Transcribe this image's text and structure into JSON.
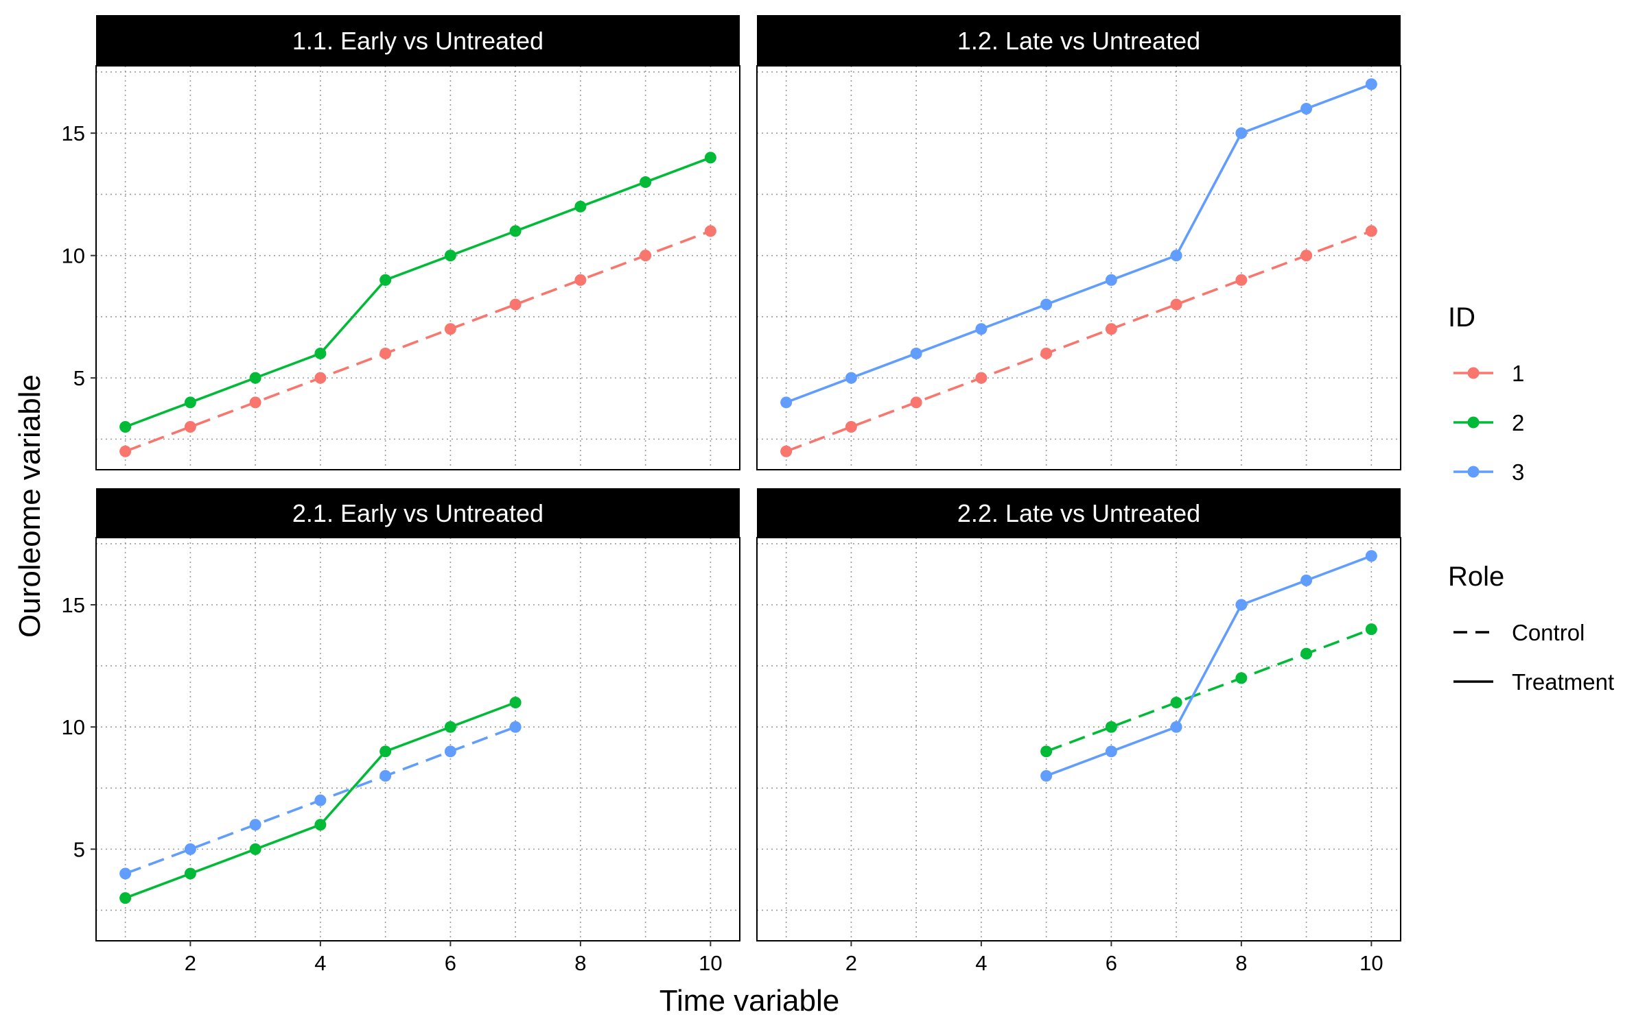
{
  "chart_data": {
    "type": "line",
    "xlabel": "Time variable",
    "ylabel": "Ouroleome variable",
    "xlim": [
      0.55,
      10.45
    ],
    "ylim": [
      1.25,
      17.75
    ],
    "x_ticks": [
      2,
      4,
      6,
      8,
      10
    ],
    "y_ticks": [
      5,
      10,
      15
    ],
    "grid": true,
    "grid_style": "dotted",
    "legend_placement": "right",
    "id_legend": {
      "title": "ID",
      "entries": [
        {
          "label": "1",
          "color": "#F8766D"
        },
        {
          "label": "2",
          "color": "#00BA38"
        },
        {
          "label": "3",
          "color": "#619CFF"
        }
      ]
    },
    "role_legend": {
      "title": "Role",
      "entries": [
        {
          "label": "Control",
          "linetype": "dashed"
        },
        {
          "label": "Treatment",
          "linetype": "solid"
        }
      ]
    },
    "panels": [
      {
        "strip": "1.1. Early vs Untreated",
        "series": [
          {
            "id": "1",
            "role": "Control",
            "color": "#F8766D",
            "x": [
              1,
              2,
              3,
              4,
              5,
              6,
              7,
              8,
              9,
              10
            ],
            "y": [
              2,
              3,
              4,
              5,
              6,
              7,
              8,
              9,
              10,
              11
            ]
          },
          {
            "id": "2",
            "role": "Treatment",
            "color": "#00BA38",
            "x": [
              1,
              2,
              3,
              4,
              5,
              6,
              7,
              8,
              9,
              10
            ],
            "y": [
              3,
              4,
              5,
              6,
              9,
              10,
              11,
              12,
              13,
              14
            ]
          }
        ]
      },
      {
        "strip": "1.2. Late vs Untreated",
        "series": [
          {
            "id": "1",
            "role": "Control",
            "color": "#F8766D",
            "x": [
              1,
              2,
              3,
              4,
              5,
              6,
              7,
              8,
              9,
              10
            ],
            "y": [
              2,
              3,
              4,
              5,
              6,
              7,
              8,
              9,
              10,
              11
            ]
          },
          {
            "id": "3",
            "role": "Treatment",
            "color": "#619CFF",
            "x": [
              1,
              2,
              3,
              4,
              5,
              6,
              7,
              8,
              9,
              10
            ],
            "y": [
              4,
              5,
              6,
              7,
              8,
              9,
              10,
              15,
              16,
              17
            ]
          }
        ]
      },
      {
        "strip": "2.1. Early vs Untreated",
        "series": [
          {
            "id": "3",
            "role": "Control",
            "color": "#619CFF",
            "x": [
              1,
              2,
              3,
              4,
              5,
              6,
              7
            ],
            "y": [
              4,
              5,
              6,
              7,
              8,
              9,
              10
            ]
          },
          {
            "id": "2",
            "role": "Treatment",
            "color": "#00BA38",
            "x": [
              1,
              2,
              3,
              4,
              5,
              6,
              7
            ],
            "y": [
              3,
              4,
              5,
              6,
              9,
              10,
              11
            ]
          }
        ]
      },
      {
        "strip": "2.2. Late vs Untreated",
        "series": [
          {
            "id": "2",
            "role": "Control",
            "color": "#00BA38",
            "x": [
              5,
              6,
              7,
              8,
              9,
              10
            ],
            "y": [
              9,
              10,
              11,
              12,
              13,
              14
            ]
          },
          {
            "id": "3",
            "role": "Treatment",
            "color": "#619CFF",
            "x": [
              5,
              6,
              7,
              8,
              9,
              10
            ],
            "y": [
              8,
              9,
              10,
              15,
              16,
              17
            ]
          }
        ]
      }
    ]
  }
}
